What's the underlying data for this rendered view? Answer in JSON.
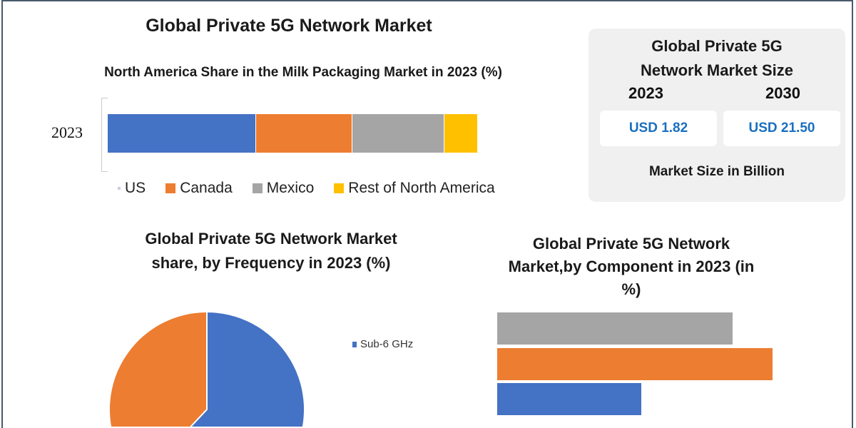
{
  "main_title": "Global Private 5G Network Market",
  "colors": {
    "blue": "#4472c4",
    "orange": "#ed7d31",
    "gray": "#a5a5a5",
    "yellow": "#ffc000",
    "value_text": "#1a6fc0",
    "panel": "#f0f0f0"
  },
  "market_size": {
    "title": "Global Private 5G Network Market Size",
    "years": [
      "2023",
      "2030"
    ],
    "values": [
      "USD 1.82",
      "USD 21.50"
    ],
    "note": "Market Size in Billion"
  },
  "chart_data": [
    {
      "type": "bar",
      "orientation": "horizontal-stacked",
      "title": "North America Share in the Milk Packaging Market in 2023 (%)",
      "categories": [
        "2023"
      ],
      "series": [
        {
          "name": "US",
          "values": [
            40
          ],
          "color": "#4472c4"
        },
        {
          "name": "Canada",
          "values": [
            26
          ],
          "color": "#ed7d31"
        },
        {
          "name": "Mexico",
          "values": [
            25
          ],
          "color": "#a5a5a5"
        },
        {
          "name": "Rest of North America",
          "values": [
            9
          ],
          "color": "#ffc000"
        }
      ],
      "legend": "bottom"
    },
    {
      "type": "pie",
      "title": "Global Private 5G Network Market share, by Frequency in 2023  (%)",
      "slices": [
        {
          "name": "Sub-6 GHz",
          "value": 62,
          "color": "#4472c4"
        },
        {
          "value": 38,
          "color": "#ed7d31"
        }
      ],
      "legend": "right"
    },
    {
      "type": "bar",
      "orientation": "horizontal",
      "title": "Global Private 5G Network Market,by Component in 2023 (in %)",
      "values": [
        36,
        42,
        22
      ],
      "colors": [
        "#a5a5a5",
        "#ed7d31",
        "#4472c4"
      ]
    }
  ]
}
